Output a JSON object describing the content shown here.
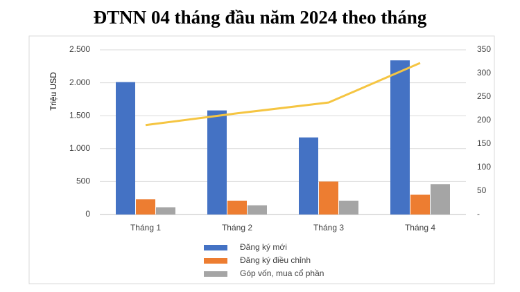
{
  "chart_data": {
    "type": "bar",
    "title": "ĐTNN 04 tháng đầu năm 2024 theo tháng",
    "y_label": "Triệu USD",
    "categories": [
      "Tháng 1",
      "Tháng 2",
      "Tháng 3",
      "Tháng 4"
    ],
    "series": [
      {
        "name": "Đăng ký mới",
        "color": "#4472c4",
        "values": [
          2010,
          1580,
          1170,
          2340
        ]
      },
      {
        "name": "Đăng ký điều chỉnh",
        "color": "#ed7d31",
        "values": [
          230,
          210,
          500,
          300
        ]
      },
      {
        "name": "Góp vốn, mua cổ phần",
        "color": "#a5a5a5",
        "values": [
          110,
          140,
          210,
          460
        ]
      },
      {
        "type": "line",
        "axis": "y2",
        "color": "#f5c542",
        "values": [
          190,
          215,
          238,
          322
        ]
      }
    ],
    "ylim": [
      0,
      2500
    ],
    "yticks": [
      0,
      500,
      {
        "value": 1000,
        "label": "1.000"
      },
      {
        "value": 1500,
        "label": "1.500"
      },
      {
        "value": 2000,
        "label": "2.000"
      },
      {
        "value": 2500,
        "label": "2.500"
      }
    ],
    "y2lim": [
      0,
      350
    ],
    "y2ticks": [
      {
        "value": 0,
        "label": "-"
      },
      50,
      100,
      150,
      200,
      250,
      300,
      350
    ],
    "grid": true,
    "legend": "bottom"
  }
}
